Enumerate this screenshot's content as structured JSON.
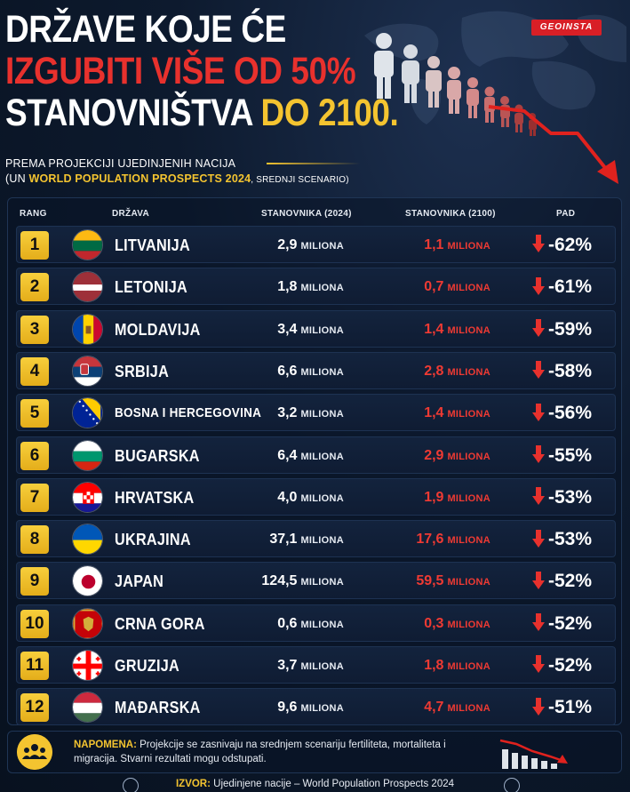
{
  "brand": "GEOINSTA",
  "title": {
    "line1": "DRŽAVE KOJE ĆE",
    "line2": "IZGUBITI VIŠE OD 50%",
    "line3_a": "STANOVNIŠTVA",
    "line3_b": "DO 2100."
  },
  "subtitle": {
    "line1": "PREMA PROJEKCIJI UJEDINJENIH NACIJA",
    "line2_a": "(UN",
    "line2_b": "WORLD POPULATION PROSPECTS 2024",
    "line2_c": ", SREDNJI SCENARIO)"
  },
  "table": {
    "headers": {
      "rank": "RANG",
      "country": "DRŽAVA",
      "pop2024": "STANOVNIKA (2024)",
      "pop2100": "STANOVNIKA (2100)",
      "drop": "PAD"
    },
    "unit": "MILIONA",
    "rows": [
      {
        "rank": "1",
        "country": "LITVANIJA",
        "pop2024": "2,9",
        "pop2100": "1,1",
        "drop": "-62%",
        "flag": "lt"
      },
      {
        "rank": "2",
        "country": "LETONIJA",
        "pop2024": "1,8",
        "pop2100": "0,7",
        "drop": "-61%",
        "flag": "lv"
      },
      {
        "rank": "3",
        "country": "MOLDAVIJA",
        "pop2024": "3,4",
        "pop2100": "1,4",
        "drop": "-59%",
        "flag": "md"
      },
      {
        "rank": "4",
        "country": "SRBIJA",
        "pop2024": "6,6",
        "pop2100": "2,8",
        "drop": "-58%",
        "flag": "rs"
      },
      {
        "rank": "5",
        "country": "BOSNA I HERCEGOVINA",
        "pop2024": "3,2",
        "pop2100": "1,4",
        "drop": "-56%",
        "flag": "ba"
      },
      {
        "rank": "6",
        "country": "BUGARSKA",
        "pop2024": "6,4",
        "pop2100": "2,9",
        "drop": "-55%",
        "flag": "bg"
      },
      {
        "rank": "7",
        "country": "HRVATSKA",
        "pop2024": "4,0",
        "pop2100": "1,9",
        "drop": "-53%",
        "flag": "hr"
      },
      {
        "rank": "8",
        "country": "UKRAJINA",
        "pop2024": "37,1",
        "pop2100": "17,6",
        "drop": "-53%",
        "flag": "ua"
      },
      {
        "rank": "9",
        "country": "JAPAN",
        "pop2024": "124,5",
        "pop2100": "59,5",
        "drop": "-52%",
        "flag": "jp"
      },
      {
        "rank": "10",
        "country": "CRNA GORA",
        "pop2024": "0,6",
        "pop2100": "0,3",
        "drop": "-52%",
        "flag": "me"
      },
      {
        "rank": "11",
        "country": "GRUZIJA",
        "pop2024": "3,7",
        "pop2100": "1,8",
        "drop": "-52%",
        "flag": "ge"
      },
      {
        "rank": "12",
        "country": "MAĐARSKA",
        "pop2024": "9,6",
        "pop2100": "4,7",
        "drop": "-51%",
        "flag": "hu"
      }
    ]
  },
  "note": {
    "label": "NAPOMENA:",
    "text": "Projekcije se zasnivaju na srednjem scenariju fertiliteta, mortaliteta i migracija. Stvarni rezultati mogu odstupati."
  },
  "source": {
    "label": "IZVOR:",
    "text": "Ujedinjene nacije – World Population Prospects 2024"
  },
  "colors": {
    "accent_yellow": "#f4c430",
    "accent_red": "#e8312d",
    "background": "#0b1526"
  }
}
